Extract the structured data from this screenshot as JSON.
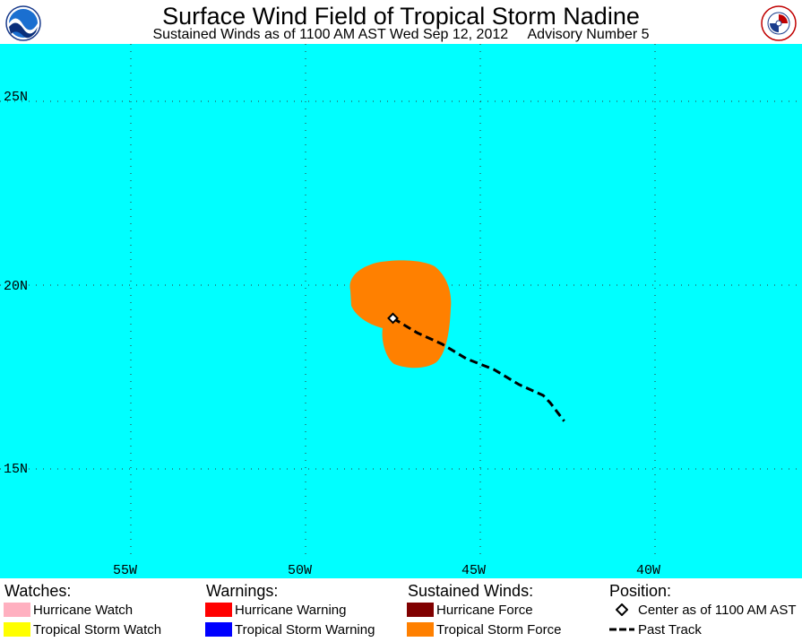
{
  "header": {
    "title": "Surface Wind Field of Tropical Storm Nadine",
    "subtitle": "Sustained Winds as of 1100 AM AST Wed Sep 12, 2012     Advisory Number 5",
    "left_logo": "NOAA",
    "right_logo": "NATIONAL WEATHER SERVICE"
  },
  "map": {
    "ocean_color": "#00FFFF",
    "lat_labels": [
      "25N",
      "20N",
      "15N"
    ],
    "lon_labels": [
      "55W",
      "50W",
      "45W",
      "40W"
    ],
    "lat_values": [
      25,
      20,
      15
    ],
    "lon_values": [
      55,
      50,
      45,
      40
    ],
    "wind_field_color": "#FF8000",
    "storm_center": {
      "lat": 19.1,
      "lon": 47.5
    },
    "past_track": [
      [
        19.1,
        47.5
      ],
      [
        18.7,
        46.8
      ],
      [
        18.4,
        46.1
      ],
      [
        18.0,
        45.4
      ],
      [
        17.7,
        44.6
      ],
      [
        17.3,
        43.9
      ],
      [
        17.0,
        43.2
      ],
      [
        16.8,
        43.0
      ],
      [
        16.3,
        42.6
      ]
    ]
  },
  "legend": {
    "watches_header": "Watches:",
    "warnings_header": "Warnings:",
    "winds_header": "Sustained Winds:",
    "position_header": "Position:",
    "hurricane_watch": {
      "label": "Hurricane Watch",
      "color": "#FFB0C0"
    },
    "ts_watch": {
      "label": "Tropical Storm Watch",
      "color": "#FFFF00"
    },
    "hurricane_warning": {
      "label": "Hurricane Warning",
      "color": "#FF0000"
    },
    "ts_warning": {
      "label": "Tropical Storm Warning",
      "color": "#0000FF"
    },
    "hurricane_force": {
      "label": "Hurricane Force",
      "color": "#800000"
    },
    "ts_force": {
      "label": "Tropical Storm Force",
      "color": "#FF8000"
    },
    "center": {
      "label": "Center as of 1100 AM AST",
      "icon": "diamond-icon"
    },
    "past_track": {
      "label": "Past Track",
      "icon": "dashed-line-icon"
    }
  }
}
